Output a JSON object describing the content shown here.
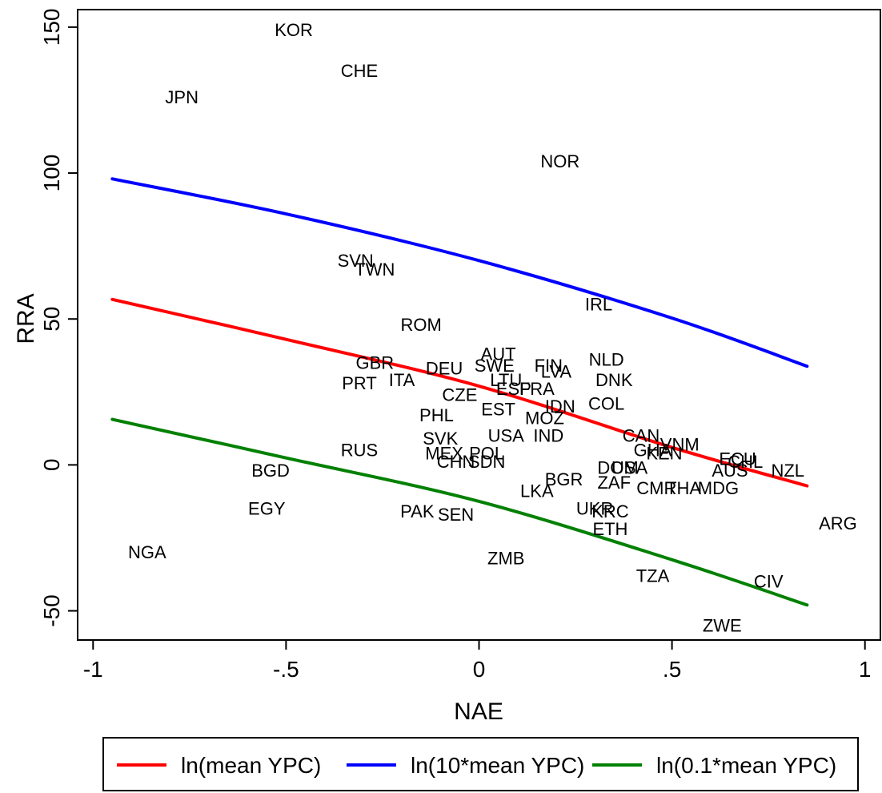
{
  "chart_data": {
    "type": "scatter",
    "xlabel": "NAE",
    "ylabel": "RRA",
    "xlim": [
      -1.04,
      1.04
    ],
    "ylim": [
      -60,
      156
    ],
    "xticks": [
      {
        "value": -1,
        "label": "-1"
      },
      {
        "value": -0.5,
        "label": "-.5"
      },
      {
        "value": 0,
        "label": "0"
      },
      {
        "value": 0.5,
        "label": ".5"
      },
      {
        "value": 1,
        "label": "1"
      }
    ],
    "yticks": [
      {
        "value": -50,
        "label": "-50"
      },
      {
        "value": 0,
        "label": "0"
      },
      {
        "value": 50,
        "label": "50"
      },
      {
        "value": 100,
        "label": "100"
      },
      {
        "value": 150,
        "label": "150"
      }
    ],
    "points": [
      {
        "label": "KOR",
        "x": -0.48,
        "y": 149
      },
      {
        "label": "CHE",
        "x": -0.31,
        "y": 135
      },
      {
        "label": "JPN",
        "x": -0.77,
        "y": 126
      },
      {
        "label": "NOR",
        "x": 0.21,
        "y": 104
      },
      {
        "label": "SVN",
        "x": -0.32,
        "y": 70
      },
      {
        "label": "TWN",
        "x": -0.27,
        "y": 67
      },
      {
        "label": "IRL",
        "x": 0.31,
        "y": 55
      },
      {
        "label": "ROM",
        "x": -0.15,
        "y": 48
      },
      {
        "label": "AUT",
        "x": 0.05,
        "y": 38
      },
      {
        "label": "NLD",
        "x": 0.33,
        "y": 36
      },
      {
        "label": "GBR",
        "x": -0.27,
        "y": 35
      },
      {
        "label": "SWE",
        "x": 0.04,
        "y": 34
      },
      {
        "label": "FIN",
        "x": 0.18,
        "y": 34
      },
      {
        "label": "DEU",
        "x": -0.09,
        "y": 33
      },
      {
        "label": "LVA",
        "x": 0.2,
        "y": 32
      },
      {
        "label": "ITA",
        "x": -0.2,
        "y": 29
      },
      {
        "label": "PRT",
        "x": -0.31,
        "y": 28
      },
      {
        "label": "LTU",
        "x": 0.07,
        "y": 29
      },
      {
        "label": "DNK",
        "x": 0.35,
        "y": 29
      },
      {
        "label": "ESP",
        "x": 0.09,
        "y": 26
      },
      {
        "label": "FRA",
        "x": 0.15,
        "y": 26
      },
      {
        "label": "CZE",
        "x": -0.05,
        "y": 24
      },
      {
        "label": "COL",
        "x": 0.33,
        "y": 21
      },
      {
        "label": "EST",
        "x": 0.05,
        "y": 19
      },
      {
        "label": "IDN",
        "x": 0.21,
        "y": 20
      },
      {
        "label": "PHL",
        "x": -0.11,
        "y": 17
      },
      {
        "label": "MOZ",
        "x": 0.17,
        "y": 16
      },
      {
        "label": "CAN",
        "x": 0.42,
        "y": 10
      },
      {
        "label": "USA",
        "x": 0.07,
        "y": 10
      },
      {
        "label": "IND",
        "x": 0.18,
        "y": 10
      },
      {
        "label": "SVK",
        "x": -0.1,
        "y": 9
      },
      {
        "label": "VNM",
        "x": 0.52,
        "y": 7
      },
      {
        "label": "RUS",
        "x": -0.31,
        "y": 5
      },
      {
        "label": "GHA",
        "x": 0.45,
        "y": 5
      },
      {
        "label": "KEN",
        "x": 0.48,
        "y": 4
      },
      {
        "label": "MEX",
        "x": -0.09,
        "y": 4
      },
      {
        "label": "POL",
        "x": 0.02,
        "y": 4
      },
      {
        "label": "SDN",
        "x": 0.02,
        "y": 1
      },
      {
        "label": "CHN",
        "x": -0.06,
        "y": 1
      },
      {
        "label": "ECU",
        "x": 0.67,
        "y": 2
      },
      {
        "label": "CHL",
        "x": 0.69,
        "y": 1
      },
      {
        "label": "NZL",
        "x": 0.8,
        "y": -2
      },
      {
        "label": "AUS",
        "x": 0.65,
        "y": -2
      },
      {
        "label": "BGD",
        "x": -0.54,
        "y": -2
      },
      {
        "label": "DOM",
        "x": 0.36,
        "y": -1
      },
      {
        "label": "USA",
        "x": 0.39,
        "y": -1
      },
      {
        "label": "ZAF",
        "x": 0.35,
        "y": -6
      },
      {
        "label": "BGR",
        "x": 0.22,
        "y": -5
      },
      {
        "label": "CMR",
        "x": 0.46,
        "y": -8
      },
      {
        "label": "THA",
        "x": 0.53,
        "y": -8
      },
      {
        "label": "MDG",
        "x": 0.62,
        "y": -8
      },
      {
        "label": "LKA",
        "x": 0.15,
        "y": -9
      },
      {
        "label": "EGY",
        "x": -0.55,
        "y": -15
      },
      {
        "label": "PAK",
        "x": -0.16,
        "y": -16
      },
      {
        "label": "SEN",
        "x": -0.06,
        "y": -17
      },
      {
        "label": "UKR",
        "x": 0.3,
        "y": -15
      },
      {
        "label": "KRC",
        "x": 0.34,
        "y": -16
      },
      {
        "label": "ETH",
        "x": 0.34,
        "y": -22
      },
      {
        "label": "ARG",
        "x": 0.93,
        "y": -20
      },
      {
        "label": "NGA",
        "x": -0.86,
        "y": -30
      },
      {
        "label": "ZMB",
        "x": 0.07,
        "y": -32
      },
      {
        "label": "TZA",
        "x": 0.45,
        "y": -38
      },
      {
        "label": "CIV",
        "x": 0.75,
        "y": -40
      },
      {
        "label": "ZWE",
        "x": 0.63,
        "y": -55
      }
    ],
    "series": [
      {
        "name": "ln(mean YPC)",
        "color": "#ff0000",
        "x": [
          -0.95,
          -0.5,
          0,
          0.5,
          0.85
        ],
        "y": [
          56.7,
          43,
          27,
          6,
          -7.2
        ]
      },
      {
        "name": "ln(10*mean YPC)",
        "color": "#0000ff",
        "x": [
          -0.95,
          -0.5,
          0,
          0.5,
          0.85
        ],
        "y": [
          98,
          86,
          70,
          50.3,
          33.8
        ]
      },
      {
        "name": "ln(0.1*mean YPC)",
        "color": "#008000",
        "x": [
          -0.95,
          -0.5,
          0,
          0.5,
          0.85
        ],
        "y": [
          15.6,
          2.4,
          -12.5,
          -32.5,
          -48
        ]
      }
    ],
    "legend_position": "bottom",
    "grid": false
  }
}
